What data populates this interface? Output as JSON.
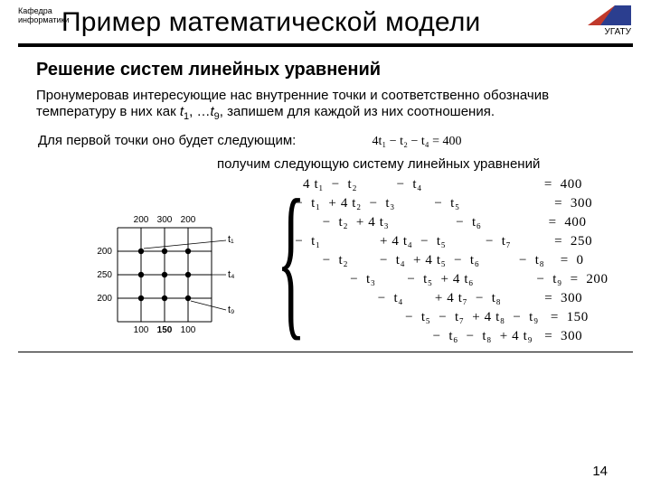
{
  "header": {
    "department_line1": "Кафедра",
    "department_line2": "информатики",
    "title": "Пример математической модели",
    "university": "УГАТУ",
    "logo": {
      "red": "#c0392b",
      "blue": "#2b3e8f"
    }
  },
  "subheading": "Решение систем линейных уравнений",
  "paragraph1_prefix": "Пронумеровав интересующие нас внутренние точки и соответственно обозначив температуру в них как ",
  "t1": "t",
  "sub1": "1",
  "paragraph1_mid": ", …",
  "t9": "t",
  "sub9": "9",
  "paragraph1_suffix": ", запишем для каждой из них соотношения.",
  "paragraph2": "Для первой точки оно будет следующим:",
  "first_equation": "4t₁ − t₂ − t₄ = 400",
  "midline": "получим следующую систему линейных уравнений",
  "grid": {
    "top_labels": [
      "200",
      "300",
      "200"
    ],
    "left_labels": [
      "200",
      "250",
      "200"
    ],
    "bottom_labels": [
      "100",
      "150",
      "100"
    ],
    "t_labels": [
      "t₁",
      "t₄",
      "t₉"
    ],
    "colors": {
      "line": "#000000",
      "dot": "#000000"
    }
  },
  "system": {
    "rows": [
      "   4 t₁  −  t₂          −  t₄                               =  400",
      " −  t₁  + 4 t₂  −  t₃          −  t₅                        =  300",
      "        −  t₂  + 4 t₃                 −  t₆                 =  400",
      " −  t₁               + 4 t₄  −  t₅          −  t₇           =  250",
      "        −  t₂        −  t₄  + 4 t₅  −  t₆          −  t₈    =  0",
      "               −  t₃        −  t₅  + 4 t₆                −  t₉  =  200",
      "                      −  t₄        + 4 t₇  −  t₈           =  300",
      "                             −  t₅  −  t₇  + 4 t₈  −  t₉   =  150",
      "                                    −  t₆  −  t₈  + 4 t₉   =  300"
    ]
  },
  "page_number": "14",
  "rule_color": "#000000"
}
